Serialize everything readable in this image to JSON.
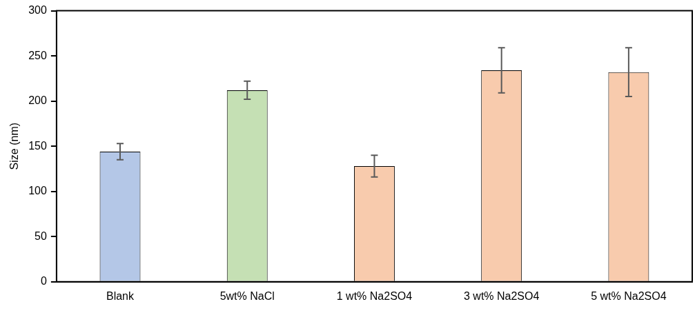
{
  "chart_data": {
    "type": "bar",
    "ylabel": "Size (nm)",
    "categories": [
      "Blank",
      "5wt% NaCl",
      "1 wt% Na2SO4",
      "3 wt% Na2SO4",
      "5 wt% Na2SO4"
    ],
    "values": [
      144,
      212,
      128,
      234,
      232
    ],
    "errors": [
      9,
      10,
      12,
      25,
      27
    ],
    "colors": [
      "#b4c7e7",
      "#c5e0b4",
      "#f8cbad",
      "#f8cbad",
      "#f8cbad"
    ],
    "ylim": [
      0,
      300
    ],
    "yticks": [
      0,
      50,
      100,
      150,
      200,
      250,
      300
    ],
    "grid": false,
    "legend": false
  }
}
